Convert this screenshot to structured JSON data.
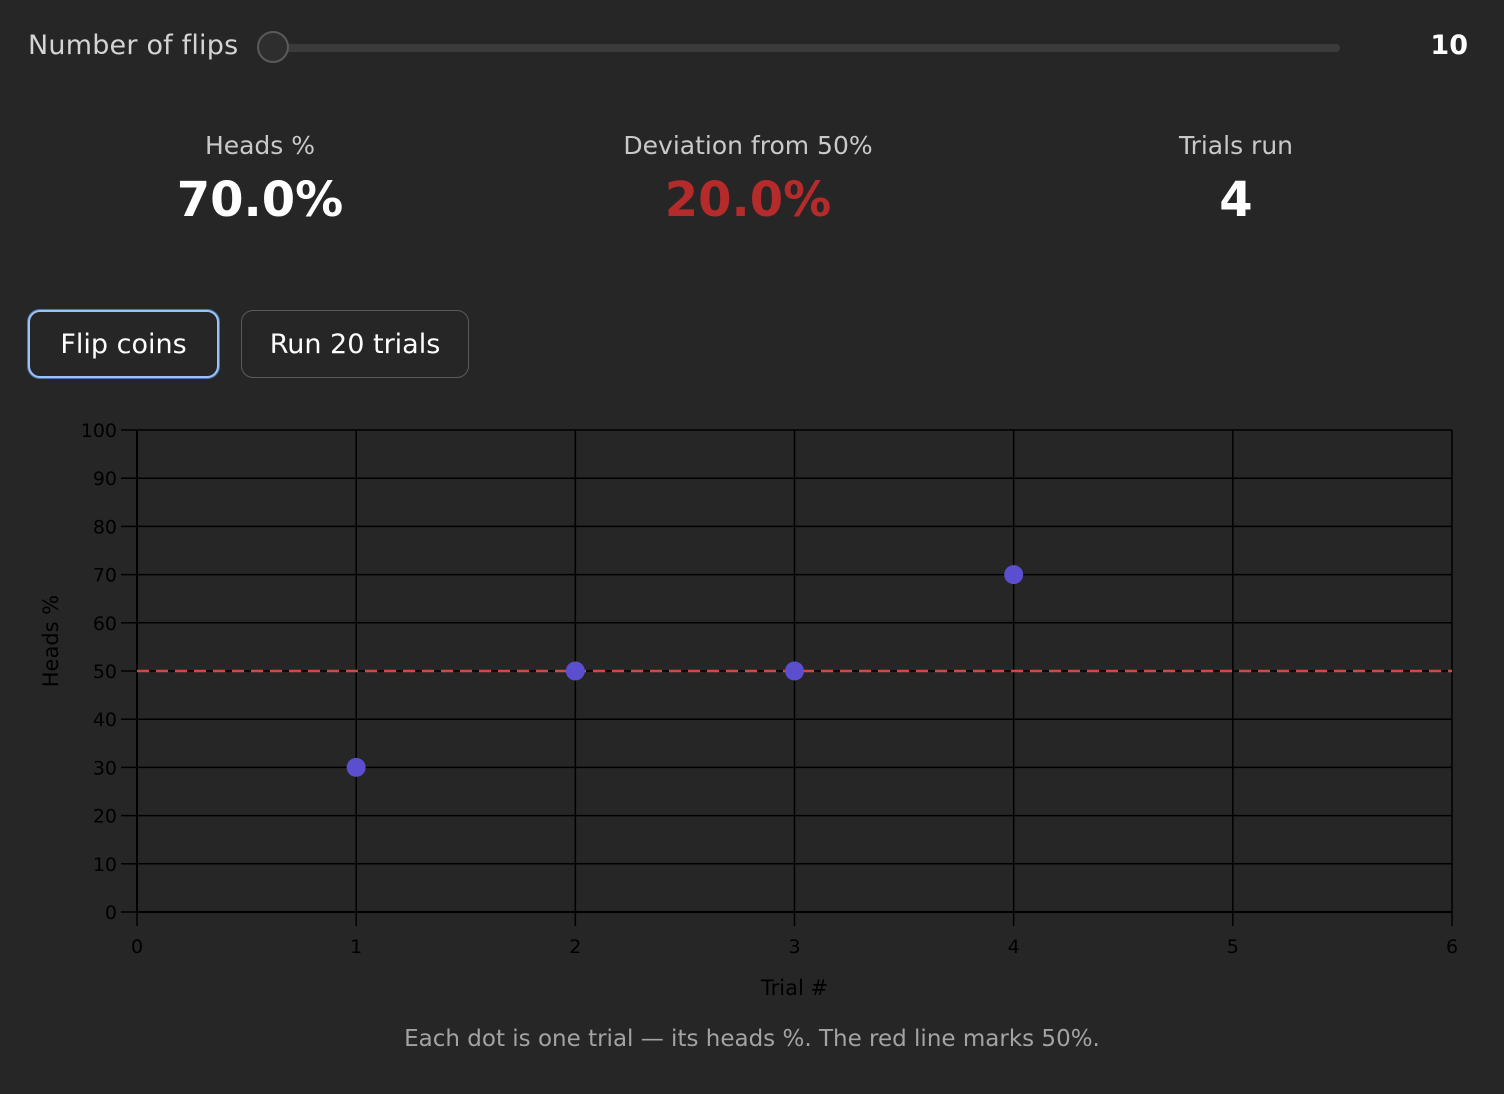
{
  "slider": {
    "label": "Number of flips",
    "value": "10",
    "min": 10,
    "max": 1000,
    "current": 10
  },
  "stats": {
    "heads": {
      "label": "Heads %",
      "value": "70.0%"
    },
    "deviation": {
      "label": "Deviation from 50%",
      "value": "20.0%",
      "color": "#b52b2b"
    },
    "trials": {
      "label": "Trials run",
      "value": "4"
    }
  },
  "buttons": {
    "flip": "Flip coins",
    "run": "Run 20 trials"
  },
  "chart_data": {
    "type": "scatter",
    "xlabel": "Trial #",
    "ylabel": "Heads %",
    "xlim": [
      0,
      6
    ],
    "ylim": [
      0,
      100
    ],
    "x_ticks": [
      "0",
      "1",
      "2",
      "3",
      "4",
      "5",
      "6"
    ],
    "y_ticks": [
      "0",
      "10",
      "20",
      "30",
      "40",
      "50",
      "60",
      "70",
      "80",
      "90",
      "100"
    ],
    "grid": true,
    "points": [
      {
        "x": 1,
        "y": 30
      },
      {
        "x": 2,
        "y": 50
      },
      {
        "x": 3,
        "y": 50
      },
      {
        "x": 4,
        "y": 70
      }
    ],
    "reference_line": {
      "y": 50,
      "color": "#d84545",
      "style": "dashed"
    },
    "point_color": "#5b4fcf"
  },
  "caption": "Each dot is one trial — its heads %. The red line marks 50%."
}
